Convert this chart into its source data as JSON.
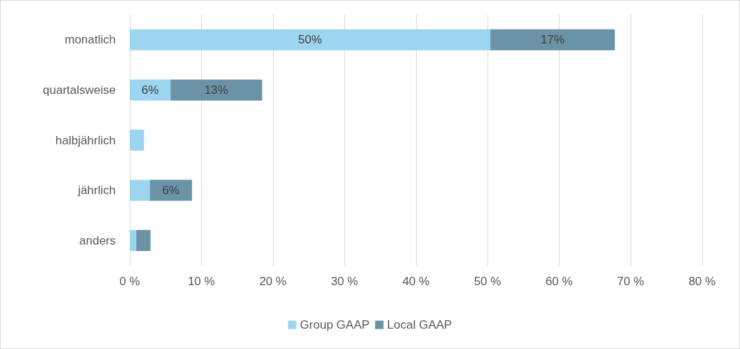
{
  "chart_data": {
    "type": "bar",
    "orientation": "horizontal",
    "stacked": true,
    "categories": [
      "monatlich",
      "quartalsweise",
      "halbjährlich",
      "jährlich",
      "anders"
    ],
    "series": [
      {
        "name": "Group GAAP",
        "color": "#9dd5f0",
        "values": [
          50.4,
          5.7,
          2.0,
          2.8,
          0.9
        ],
        "value_labels": [
          "50%",
          "6%",
          null,
          null,
          null
        ]
      },
      {
        "name": "Local GAAP",
        "color": "#6a93a8",
        "values": [
          17.4,
          12.8,
          null,
          5.9,
          2.0
        ],
        "value_labels": [
          "17%",
          "13%",
          null,
          "6%",
          null
        ]
      }
    ],
    "xlim": [
      0,
      80
    ],
    "xticks": [
      {
        "value": 0,
        "label": "0 %"
      },
      {
        "value": 10,
        "label": "10 %"
      },
      {
        "value": 20,
        "label": "20 %"
      },
      {
        "value": 30,
        "label": "30 %"
      },
      {
        "value": 40,
        "label": "40 %"
      },
      {
        "value": 50,
        "label": "50 %"
      },
      {
        "value": 60,
        "label": "60 %"
      },
      {
        "value": 70,
        "label": "70 %"
      },
      {
        "value": 80,
        "label": "80 %"
      }
    ],
    "grid": "x",
    "legend": "bottom"
  }
}
